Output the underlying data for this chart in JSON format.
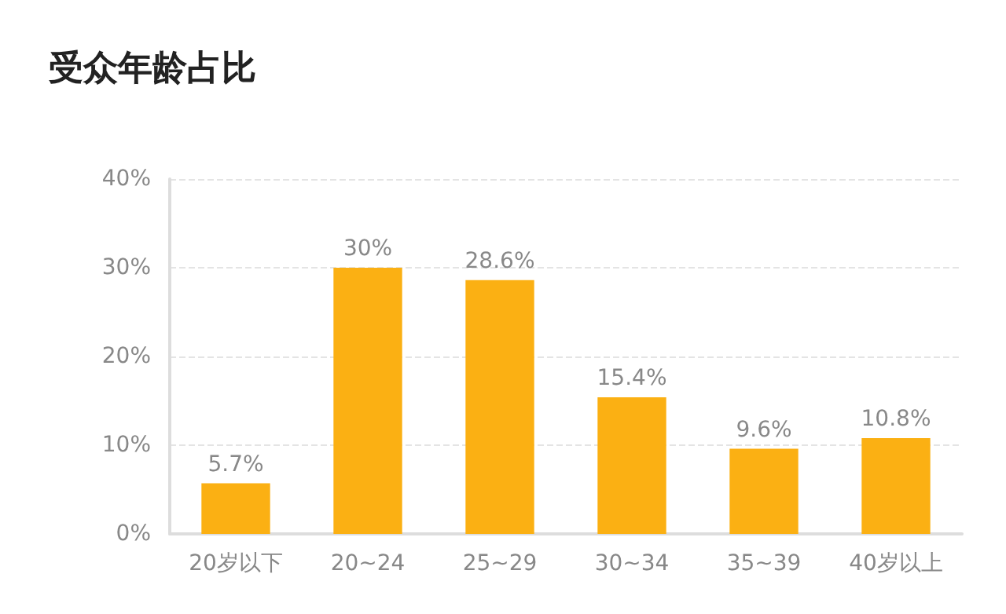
{
  "chart_data": {
    "type": "bar",
    "title": "受众年龄占比",
    "categories": [
      "20岁以下",
      "20~24",
      "25~29",
      "30~34",
      "35~39",
      "40岁以上"
    ],
    "values": [
      5.7,
      30,
      28.6,
      15.4,
      9.6,
      10.8
    ],
    "value_labels": [
      "5.7%",
      "30%",
      "28.6%",
      "15.4%",
      "9.6%",
      "10.8%"
    ],
    "color": "#fbb013",
    "ylim": [
      0,
      40
    ],
    "yticks": [
      {
        "value": 0,
        "label": "0%"
      },
      {
        "value": 10,
        "label": "10%"
      },
      {
        "value": 20,
        "label": "20%"
      },
      {
        "value": 30,
        "label": "30%"
      },
      {
        "value": 40,
        "label": "40%"
      }
    ],
    "grid": "y"
  }
}
